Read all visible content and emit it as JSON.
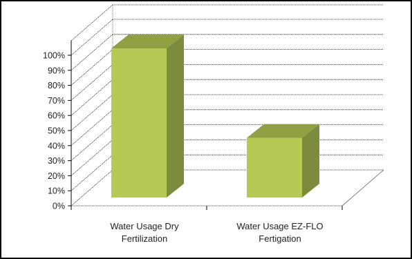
{
  "chart_data": {
    "type": "bar",
    "title": "",
    "xlabel": "",
    "ylabel": "",
    "categories": [
      [
        "Water Usage Dry",
        "Fertilization"
      ],
      [
        "Water Usage EZ-FLO",
        "Fertigation"
      ]
    ],
    "values": [
      100,
      40
    ],
    "ylim": [
      0,
      100
    ],
    "yticks": [
      "0%",
      "10%",
      "20%",
      "30%",
      "40%",
      "50%",
      "60%",
      "70%",
      "80%",
      "90%",
      "100%"
    ],
    "grid": true,
    "three_d": true,
    "colors": {
      "bar_front": "#b8c855",
      "bar_side": "#7b8c3c",
      "bar_top": "#8fa043",
      "gridline": "#000000",
      "frame": "#000000"
    }
  }
}
